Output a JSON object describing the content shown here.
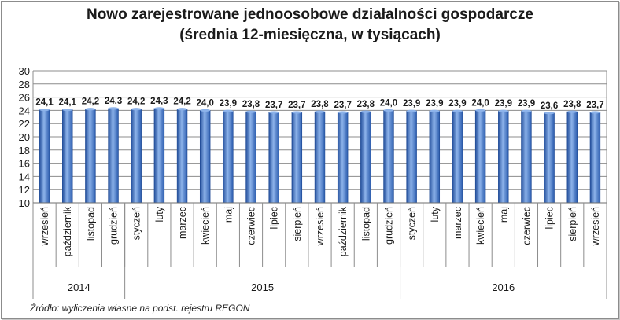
{
  "chart_data": {
    "type": "bar",
    "title": "Nowo zarejestrowane jednoosobowe działalności gospodarcze",
    "subtitle": "(średnia 12-miesięczna, w tysiącach)",
    "source": "Źródło: wyliczenia własne na podst. rejestru REGON",
    "categories": [
      "wrzesień",
      "październik",
      "listopad",
      "grudzień",
      "styczeń",
      "luty",
      "marzec",
      "kwiecień",
      "maj",
      "czerwiec",
      "lipiec",
      "sierpień",
      "wrzesień",
      "październik",
      "listopad",
      "grudzień",
      "styczeń",
      "luty",
      "marzec",
      "kwiecień",
      "maj",
      "czerwiec",
      "lipiec",
      "sierpień",
      "wrzesień"
    ],
    "values": [
      24.1,
      24.1,
      24.2,
      24.3,
      24.2,
      24.3,
      24.2,
      24.0,
      23.9,
      23.8,
      23.7,
      23.7,
      23.8,
      23.7,
      23.8,
      24.0,
      23.9,
      23.9,
      23.9,
      24.0,
      23.9,
      23.9,
      23.6,
      23.8,
      23.7
    ],
    "data_labels": [
      "24,1",
      "24,1",
      "24,2",
      "24,3",
      "24,2",
      "24,3",
      "24,2",
      "24,0",
      "23,9",
      "23,8",
      "23,7",
      "23,7",
      "23,8",
      "23,7",
      "23,8",
      "24,0",
      "23,9",
      "23,9",
      "23,9",
      "24,0",
      "23,9",
      "23,9",
      "23,6",
      "23,8",
      "23,7"
    ],
    "groups": [
      {
        "label": "2014",
        "count": 4
      },
      {
        "label": "2015",
        "count": 12
      },
      {
        "label": "2016",
        "count": 9
      }
    ],
    "ylim": [
      10,
      30
    ],
    "yticks": [
      10,
      12,
      14,
      16,
      18,
      20,
      22,
      24,
      26,
      28,
      30
    ],
    "grid": true,
    "legend": "none",
    "colors": {
      "bar": "#3b6fc4",
      "bar_light": "#8db3ea",
      "bar_dark": "#1f4a94",
      "grid": "#8c8c8c"
    }
  }
}
